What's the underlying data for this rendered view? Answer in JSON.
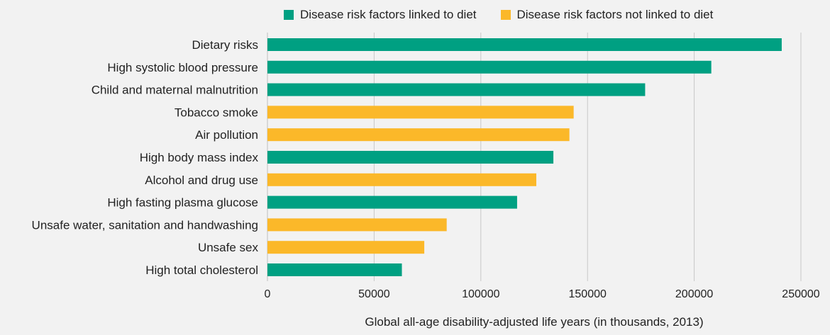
{
  "chart_data": {
    "type": "bar",
    "orientation": "horizontal",
    "title": "",
    "xlabel": "Global all-age disability-adjusted life years (in thousands, 2013)",
    "ylabel": "",
    "xlim": [
      0,
      250000
    ],
    "xticks": [
      "0",
      "50000",
      "100000",
      "150000",
      "200000",
      "250000"
    ],
    "grid": true,
    "legend_position": "top",
    "legend": [
      {
        "key": "diet",
        "label": "Disease risk factors linked to diet",
        "color": "#00a082"
      },
      {
        "key": "nondiet",
        "label": "Disease risk factors not linked to diet",
        "color": "#fbb829"
      }
    ],
    "categories": [
      "Dietary risks",
      "High systolic blood pressure",
      "Child and maternal malnutrition",
      "Tobacco smoke",
      "Air pollution",
      "High body mass index",
      "Alcohol and drug use",
      "High fasting plasma glucose",
      "Unsafe water, sanitation and handwashing",
      "Unsafe sex",
      "High total cholesterol"
    ],
    "values": [
      241000,
      208000,
      177000,
      143500,
      141500,
      134000,
      126000,
      117000,
      84000,
      73500,
      63000
    ],
    "groups": [
      "diet",
      "diet",
      "diet",
      "nondiet",
      "nondiet",
      "diet",
      "nondiet",
      "diet",
      "nondiet",
      "nondiet",
      "diet"
    ]
  }
}
